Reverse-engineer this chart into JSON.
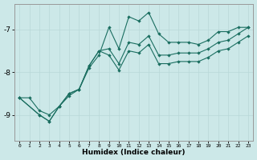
{
  "xlabel": "Humidex (Indice chaleur)",
  "bg_color": "#cce8e8",
  "line_color": "#1a6e60",
  "grid_color": "#b8d8d8",
  "xlim": [
    -0.5,
    23.5
  ],
  "ylim": [
    -9.6,
    -6.4
  ],
  "yticks": [
    -9,
    -8,
    -7
  ],
  "xticks": [
    0,
    1,
    2,
    3,
    4,
    5,
    6,
    7,
    8,
    9,
    10,
    11,
    12,
    13,
    14,
    15,
    16,
    17,
    18,
    19,
    20,
    21,
    22,
    23
  ],
  "curve1_x": [
    0,
    1,
    2,
    3,
    4,
    5,
    6,
    7,
    8,
    9,
    10,
    11,
    12,
    13,
    14,
    15,
    16,
    17,
    18,
    19,
    20,
    21,
    22,
    23
  ],
  "curve1_y": [
    -8.6,
    -8.6,
    -8.9,
    -9.0,
    -8.8,
    -8.55,
    -8.4,
    -7.9,
    -7.6,
    -6.95,
    -7.45,
    -6.7,
    -6.8,
    -6.6,
    -7.1,
    -7.3,
    -7.3,
    -7.3,
    -7.35,
    -7.25,
    -7.05,
    -7.05,
    -6.95,
    -6.95
  ],
  "curve2_x": [
    0,
    2,
    3,
    4,
    5,
    6,
    7,
    8,
    9,
    10,
    11,
    12,
    13,
    14,
    15,
    16,
    17,
    18,
    19,
    20,
    21,
    22,
    23
  ],
  "curve2_y": [
    -8.6,
    -9.0,
    -9.15,
    -8.8,
    -8.5,
    -8.4,
    -7.85,
    -7.5,
    -7.45,
    -7.8,
    -7.3,
    -7.35,
    -7.15,
    -7.6,
    -7.6,
    -7.55,
    -7.55,
    -7.55,
    -7.45,
    -7.3,
    -7.25,
    -7.1,
    -6.95
  ],
  "curve3_x": [
    0,
    2,
    3,
    4,
    5,
    6,
    7,
    8,
    9,
    10,
    11,
    12,
    13,
    14,
    15,
    16,
    17,
    18,
    19,
    20,
    21,
    22,
    23
  ],
  "curve3_y": [
    -8.6,
    -9.0,
    -9.15,
    -8.8,
    -8.5,
    -8.4,
    -7.85,
    -7.5,
    -7.6,
    -7.95,
    -7.5,
    -7.55,
    -7.35,
    -7.8,
    -7.8,
    -7.75,
    -7.75,
    -7.75,
    -7.65,
    -7.5,
    -7.45,
    -7.3,
    -7.15
  ]
}
